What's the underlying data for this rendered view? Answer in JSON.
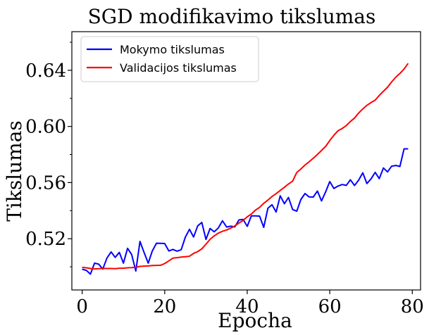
{
  "chart_data": {
    "type": "line",
    "title": "SGD modifikavimo tikslumas",
    "xlabel": "Epocha",
    "ylabel": "Tikslumas",
    "xlim": [
      -2.5,
      82
    ],
    "ylim": [
      0.4835,
      0.6675
    ],
    "xticks": [
      0,
      20,
      40,
      60,
      80
    ],
    "xtick_labels": [
      "0",
      "20",
      "40",
      "60",
      "80"
    ],
    "yticks": [
      0.52,
      0.56,
      0.6,
      0.64
    ],
    "ytick_labels": [
      "0.52",
      "0.56",
      "0.60",
      "0.64"
    ],
    "legend_position": "top-left",
    "grid": false,
    "series": [
      {
        "name": "Mokymo tikslumas",
        "color": "#0000ff",
        "x": [
          0,
          1,
          2,
          3,
          4,
          5,
          6,
          7,
          8,
          9,
          10,
          11,
          12,
          13,
          14,
          15,
          16,
          17,
          18,
          19,
          20,
          21,
          22,
          23,
          24,
          25,
          26,
          27,
          28,
          29,
          30,
          31,
          32,
          33,
          34,
          35,
          36,
          37,
          38,
          39,
          40,
          41,
          42,
          43,
          44,
          45,
          46,
          47,
          48,
          49,
          50,
          51,
          52,
          53,
          54,
          55,
          56,
          57,
          58,
          59,
          60,
          61,
          62,
          63,
          64,
          65,
          66,
          67,
          68,
          69,
          70,
          71,
          72,
          73,
          74,
          75,
          76,
          77,
          78,
          79
        ],
        "values": [
          0.4983,
          0.4975,
          0.4948,
          0.5026,
          0.5019,
          0.4984,
          0.5062,
          0.5106,
          0.5067,
          0.5102,
          0.5026,
          0.5132,
          0.5087,
          0.497,
          0.5181,
          0.5102,
          0.5026,
          0.5113,
          0.5168,
          0.5167,
          0.5166,
          0.5113,
          0.5124,
          0.5111,
          0.5122,
          0.5211,
          0.5267,
          0.5212,
          0.5292,
          0.5316,
          0.5195,
          0.5273,
          0.5249,
          0.5277,
          0.5328,
          0.5283,
          0.5289,
          0.5284,
          0.5334,
          0.5338,
          0.5288,
          0.5363,
          0.5363,
          0.5361,
          0.5281,
          0.5417,
          0.5442,
          0.539,
          0.5506,
          0.5449,
          0.5494,
          0.5408,
          0.5396,
          0.5479,
          0.5522,
          0.5498,
          0.5497,
          0.554,
          0.5469,
          0.5534,
          0.5607,
          0.5558,
          0.5575,
          0.5586,
          0.558,
          0.562,
          0.5579,
          0.5617,
          0.567,
          0.5593,
          0.5626,
          0.5673,
          0.5628,
          0.5704,
          0.5676,
          0.5717,
          0.5722,
          0.5715,
          0.584,
          0.584
        ]
      },
      {
        "name": "Validacijos tikslumas",
        "color": "#ff0000",
        "x": [
          0,
          1,
          2,
          3,
          4,
          5,
          6,
          7,
          8,
          9,
          10,
          11,
          12,
          13,
          14,
          15,
          16,
          17,
          18,
          19,
          20,
          21,
          22,
          23,
          24,
          25,
          26,
          27,
          28,
          29,
          30,
          31,
          32,
          33,
          34,
          35,
          36,
          37,
          38,
          39,
          40,
          41,
          42,
          43,
          44,
          45,
          46,
          47,
          48,
          49,
          50,
          51,
          52,
          53,
          54,
          55,
          56,
          57,
          58,
          59,
          60,
          61,
          62,
          63,
          64,
          65,
          66,
          67,
          68,
          69,
          70,
          71,
          72,
          73,
          74,
          75,
          76,
          77,
          78,
          79
        ],
        "values": [
          0.4996,
          0.4993,
          0.4988,
          0.4985,
          0.4987,
          0.4989,
          0.4988,
          0.4988,
          0.4987,
          0.499,
          0.499,
          0.4993,
          0.4994,
          0.4996,
          0.5003,
          0.5005,
          0.5006,
          0.5009,
          0.501,
          0.5011,
          0.5023,
          0.5042,
          0.5062,
          0.5065,
          0.5069,
          0.5072,
          0.5075,
          0.5095,
          0.5108,
          0.5128,
          0.5161,
          0.5196,
          0.522,
          0.524,
          0.5253,
          0.5262,
          0.5275,
          0.5291,
          0.5312,
          0.533,
          0.5356,
          0.5376,
          0.5404,
          0.5423,
          0.5452,
          0.5475,
          0.5501,
          0.5521,
          0.5544,
          0.5566,
          0.559,
          0.561,
          0.5672,
          0.5697,
          0.5725,
          0.5748,
          0.5773,
          0.58,
          0.5828,
          0.5858,
          0.5899,
          0.5937,
          0.5969,
          0.5985,
          0.6006,
          0.6035,
          0.606,
          0.6095,
          0.6125,
          0.615,
          0.617,
          0.6187,
          0.6221,
          0.6251,
          0.6279,
          0.6317,
          0.6351,
          0.6377,
          0.6409,
          0.6449
        ]
      }
    ]
  }
}
